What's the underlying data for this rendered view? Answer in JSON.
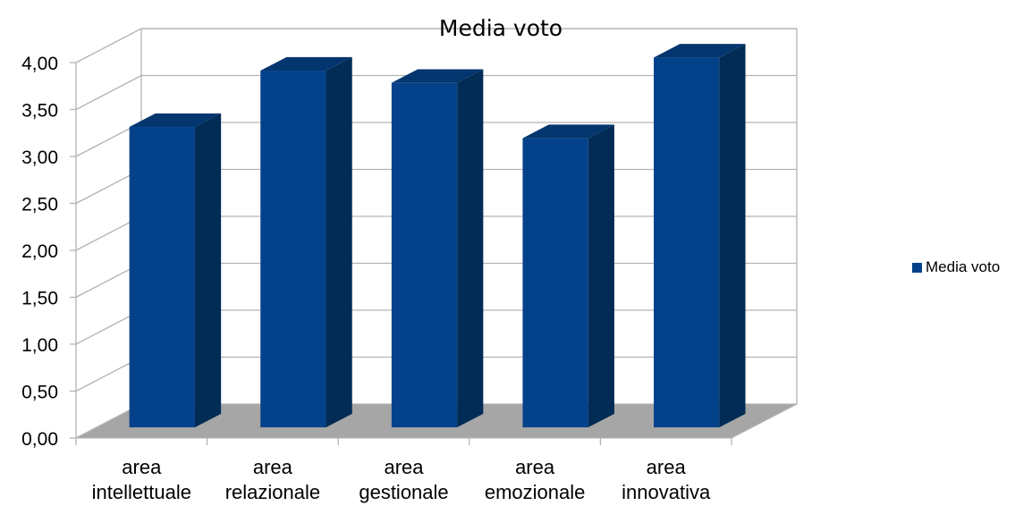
{
  "chart_data": {
    "type": "bar",
    "title": "Media voto",
    "categories": [
      [
        "area",
        "intellettuale"
      ],
      [
        "area",
        "relazionale"
      ],
      [
        "area",
        "gestionale"
      ],
      [
        "area",
        "emozionale"
      ],
      [
        "area",
        "innovativa"
      ]
    ],
    "series": [
      {
        "name": "Media voto",
        "values": [
          3.2,
          3.8,
          3.67,
          3.08,
          3.94
        ]
      }
    ],
    "y_ticks": [
      "0,00",
      "0,50",
      "1,00",
      "1,50",
      "2,00",
      "2,50",
      "3,00",
      "3,50",
      "4,00"
    ],
    "ylim": [
      0,
      4
    ],
    "grid": true,
    "legend_position": "right",
    "colors": {
      "bar_front": "#03428A",
      "bar_side": "#022C55",
      "bar_top": "#03366E",
      "floor": "#A6A6A6",
      "grid": "#B3B3B3"
    }
  }
}
